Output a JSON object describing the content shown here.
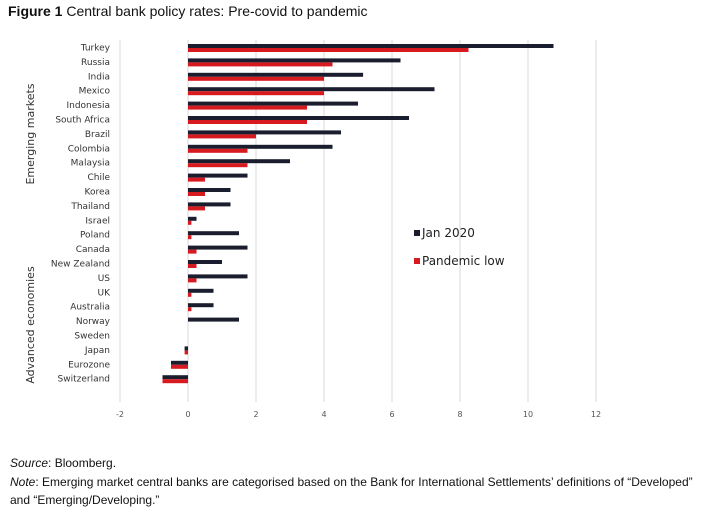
{
  "figure": {
    "number": "Figure 1",
    "title": "Central bank policy rates: Pre-covid to pandemic"
  },
  "chart_data": {
    "type": "bar",
    "orientation": "horizontal",
    "title": "Central bank policy rates: Pre-covid to pandemic",
    "categories": [
      "Turkey",
      "Russia",
      "India",
      "Mexico",
      "Indonesia",
      "South Africa",
      "Brazil",
      "Colombia",
      "Malaysia",
      "Chile",
      "Korea",
      "Thailand",
      "Israel",
      "Poland",
      "Canada",
      "New Zealand",
      "US",
      "UK",
      "Australia",
      "Norway",
      "Sweden",
      "Japan",
      "Eurozone",
      "Switzerland"
    ],
    "groups": [
      {
        "name": "Emerging markets",
        "categories": [
          "Turkey",
          "Russia",
          "India",
          "Mexico",
          "Indonesia",
          "South Africa",
          "Brazil",
          "Colombia",
          "Malaysia",
          "Chile",
          "Korea",
          "Thailand",
          "Israel",
          "Poland"
        ]
      },
      {
        "name": "Advanced economies",
        "categories": [
          "Canada",
          "New Zealand",
          "US",
          "UK",
          "Australia",
          "Norway",
          "Sweden",
          "Japan",
          "Eurozone",
          "Switzerland"
        ]
      }
    ],
    "series": [
      {
        "name": "Jan 2020",
        "color": "#1a1d2e",
        "values": [
          10.75,
          6.25,
          5.15,
          7.25,
          5.0,
          6.5,
          4.5,
          4.25,
          3.0,
          1.75,
          1.25,
          1.25,
          0.25,
          1.5,
          1.75,
          1.0,
          1.75,
          0.75,
          0.75,
          1.5,
          0.0,
          -0.1,
          -0.5,
          -0.75
        ]
      },
      {
        "name": "Pandemic low",
        "color": "#d71920",
        "values": [
          8.25,
          4.25,
          4.0,
          4.0,
          3.5,
          3.5,
          2.0,
          1.75,
          1.75,
          0.5,
          0.5,
          0.5,
          0.1,
          0.1,
          0.25,
          0.25,
          0.25,
          0.1,
          0.1,
          0.0,
          0.0,
          -0.1,
          -0.5,
          -0.75
        ]
      }
    ],
    "xaxis": {
      "ticks": [
        -2,
        0,
        2,
        4,
        6,
        8,
        10,
        12
      ],
      "range": [
        -2,
        12
      ]
    },
    "grid": true,
    "legend_position": "right"
  },
  "notes": {
    "source_label": "Source",
    "source_text": ": Bloomberg.",
    "note_label": "Note",
    "note_text": ": Emerging market central banks are categorised based on the Bank for International Settlements’ definitions of “Developed” and “Emerging/Developing.”"
  }
}
